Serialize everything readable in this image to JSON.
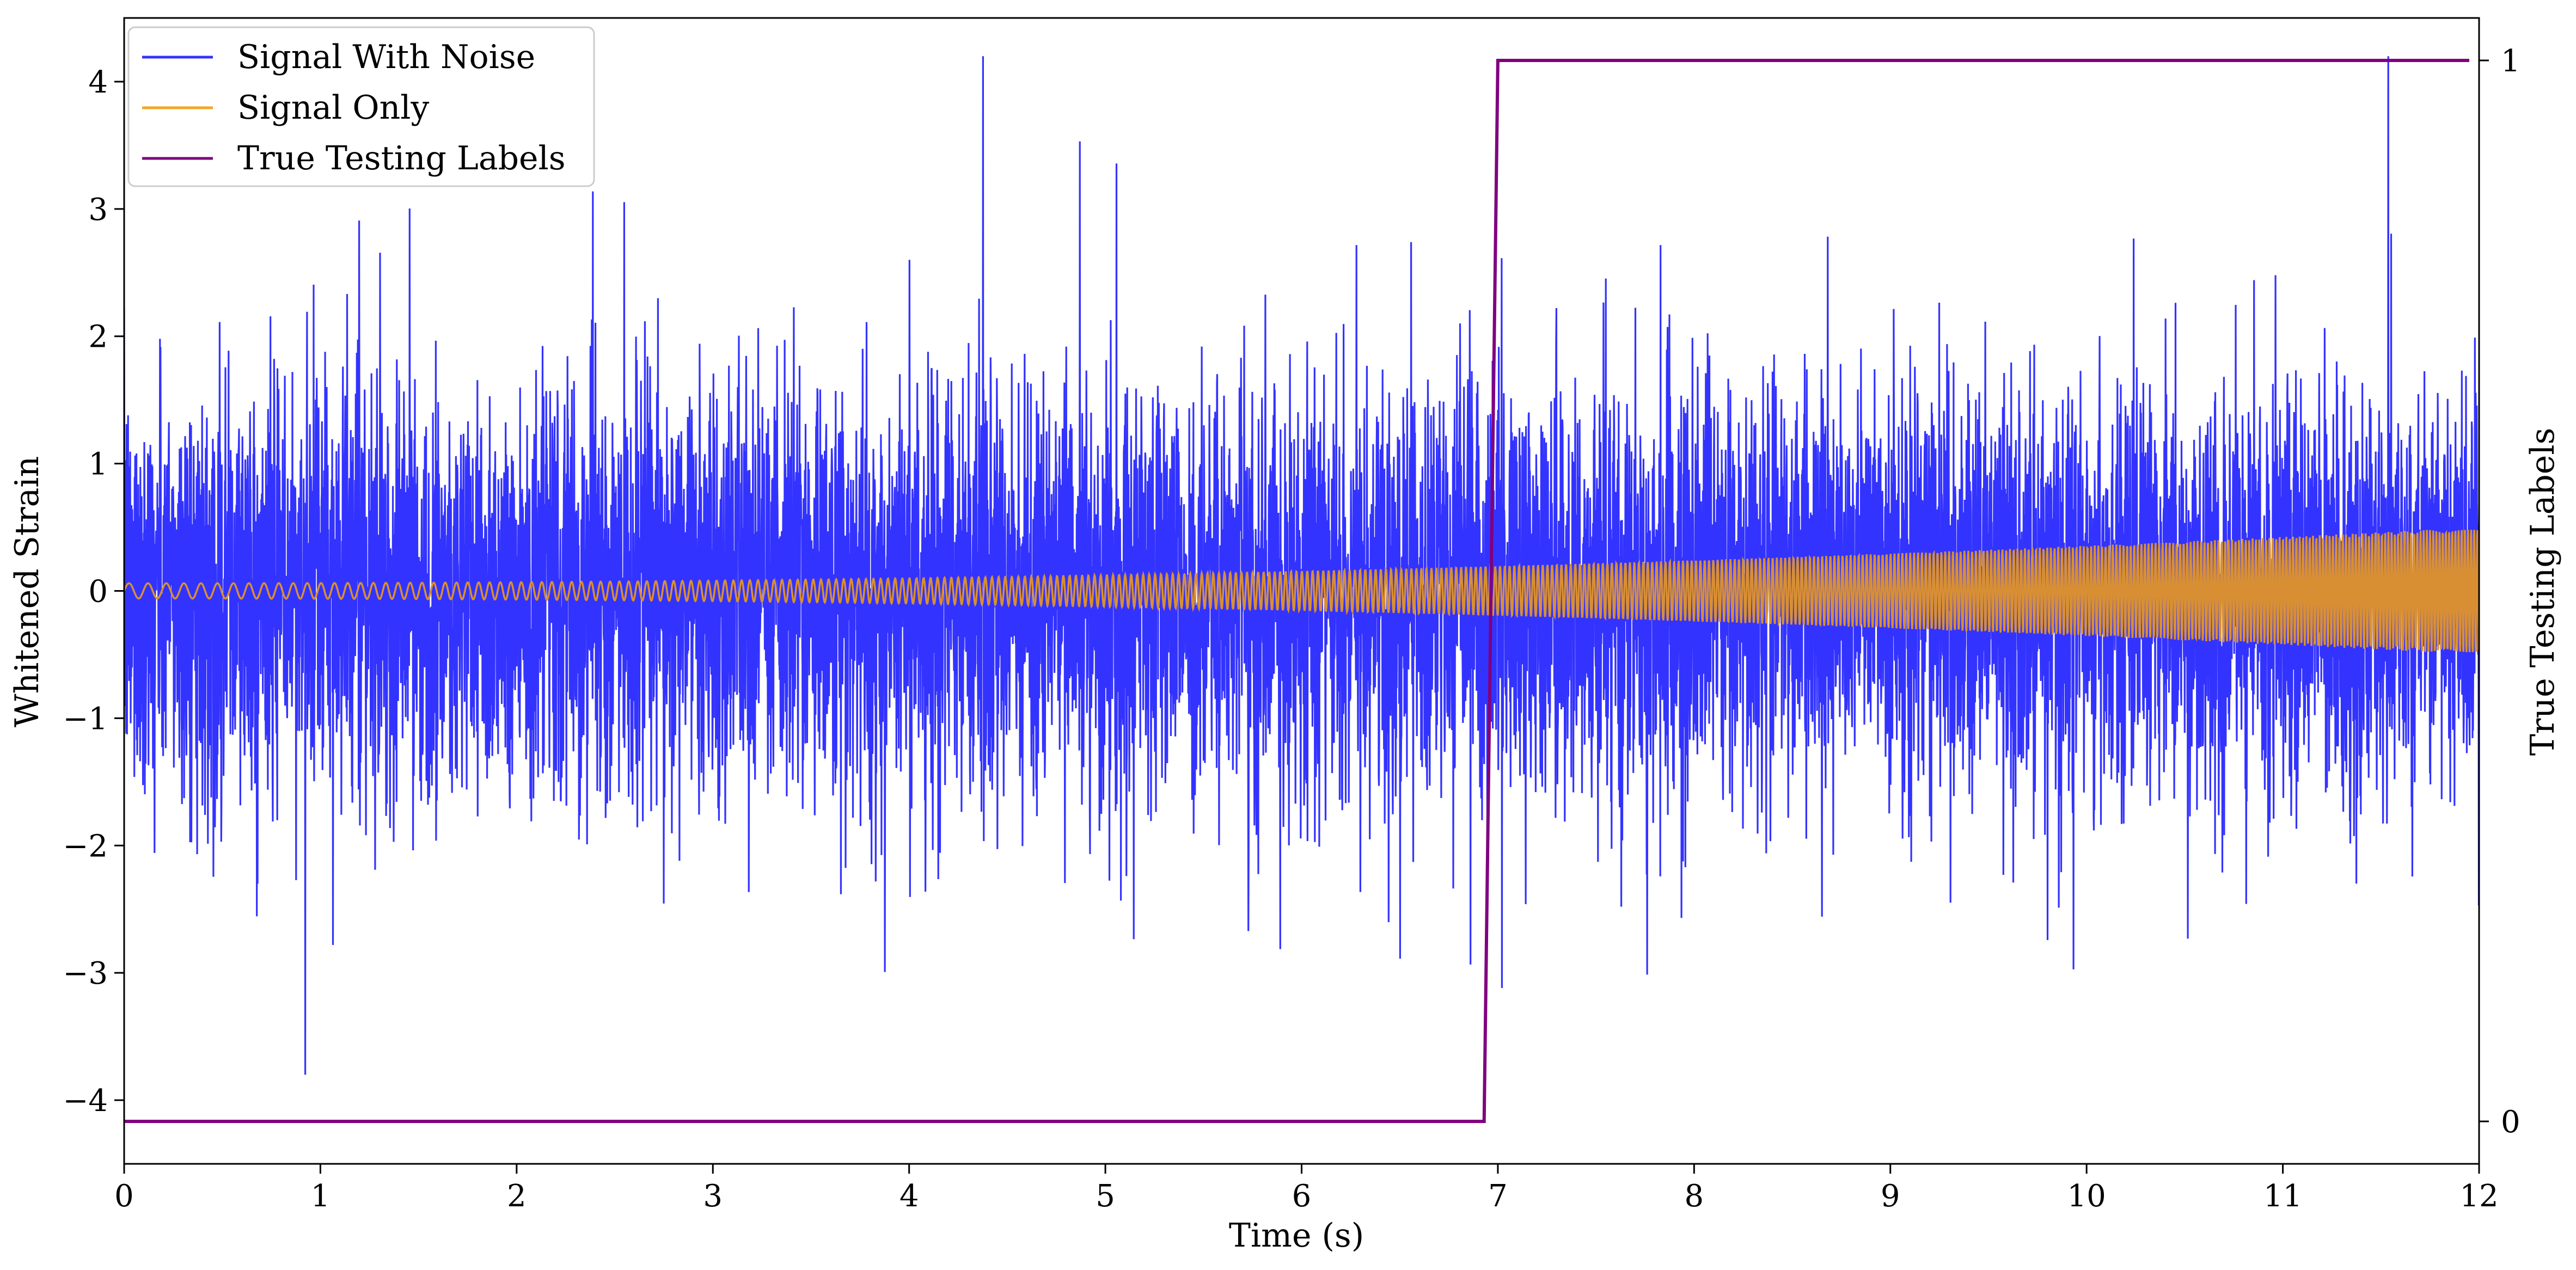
{
  "chart_data": {
    "type": "line",
    "title": "",
    "xlabel": "Time (s)",
    "ylabel": "Whitened Strain",
    "ylabel_right": "True Testing Labels",
    "xlim": [
      0,
      12
    ],
    "ylim": [
      -4.5,
      4.5
    ],
    "ylim_right": [
      -0.04,
      1.04
    ],
    "xticks": [
      0,
      1,
      2,
      3,
      4,
      5,
      6,
      7,
      8,
      9,
      10,
      11,
      12
    ],
    "xtick_labels": [
      "0",
      "1",
      "2",
      "3",
      "4",
      "5",
      "6",
      "7",
      "8",
      "9",
      "10",
      "11",
      "12"
    ],
    "yticks": [
      -4,
      -3,
      -2,
      -1,
      0,
      1,
      2,
      3,
      4
    ],
    "ytick_labels": [
      "−4",
      "−3",
      "−2",
      "−1",
      "0",
      "1",
      "2",
      "3",
      "4"
    ],
    "yticks_right": [
      0,
      1
    ],
    "ytick_labels_right": [
      "0",
      "1"
    ],
    "grid": false,
    "legend_position": "upper-left",
    "series": [
      {
        "name": "Signal With Noise",
        "color": "#3333ff",
        "axis": "left",
        "description_values": {
          "typical_std": 0.8,
          "approx_max": 4.2,
          "approx_min": -4.0
        }
      },
      {
        "name": "Signal Only",
        "color": "#f5a623",
        "axis": "left",
        "description_values": {
          "amplitude_start": 0.06,
          "amplitude_end": 0.5,
          "kind": "chirp"
        }
      },
      {
        "name": "True Testing Labels",
        "color": "#800080",
        "axis": "right",
        "x": [
          0,
          6.93,
          7.0,
          11.95
        ],
        "y": [
          0,
          0,
          1,
          1
        ]
      }
    ]
  },
  "legend": {
    "entries": [
      {
        "label": "Signal With Noise",
        "color": "#3333ff"
      },
      {
        "label": "Signal Only",
        "color": "#f5a623"
      },
      {
        "label": "True Testing Labels",
        "color": "#800080"
      }
    ]
  }
}
